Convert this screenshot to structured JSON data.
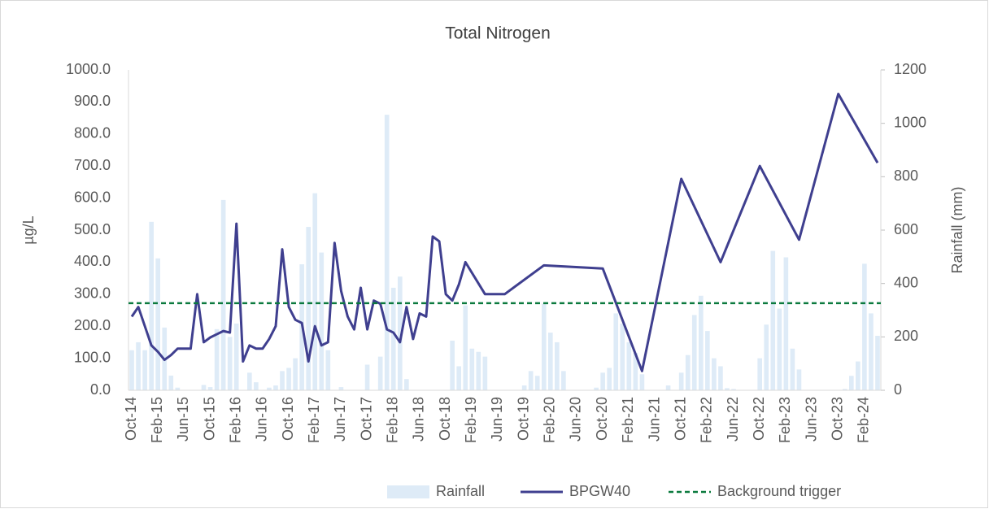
{
  "chart_data": {
    "type": "combo",
    "title": "Total Nitrogen",
    "y_label": "µg/L",
    "y2_label": "Rainfall (mm)",
    "connect_gaps": true,
    "categories": [
      "Oct-14",
      null,
      null,
      null,
      "Feb-15",
      null,
      null,
      null,
      "Jun-15",
      null,
      null,
      null,
      "Oct-15",
      null,
      null,
      null,
      "Feb-16",
      null,
      null,
      null,
      "Jun-16",
      null,
      null,
      null,
      "Oct-16",
      null,
      null,
      null,
      "Feb-17",
      null,
      null,
      null,
      "Jun-17",
      null,
      null,
      null,
      "Oct-17",
      null,
      null,
      null,
      "Feb-18",
      null,
      null,
      null,
      "Jun-18",
      null,
      null,
      null,
      "Oct-18",
      null,
      null,
      null,
      "Feb-19",
      null,
      null,
      null,
      "Jun-19",
      null,
      null,
      null,
      "Oct-19",
      null,
      null,
      null,
      "Feb-20",
      null,
      null,
      null,
      "Jun-20",
      null,
      null,
      null,
      "Oct-20",
      null,
      null,
      null,
      "Feb-21",
      null,
      null,
      null,
      "Jun-21",
      null,
      null,
      null,
      "Oct-21",
      null,
      null,
      null,
      "Feb-22",
      null,
      null,
      null,
      "Jun-22",
      null,
      null,
      null,
      "Oct-22",
      null,
      null,
      null,
      "Feb-23",
      null,
      null,
      null,
      "Jun-23",
      null,
      null,
      null,
      "Oct-23",
      null,
      null,
      null,
      "Feb-24",
      null,
      null
    ],
    "series": [
      {
        "name": "Rainfall",
        "kind": "bar",
        "axis": "y2",
        "color": "#deebf7",
        "values": [
          150,
          180,
          150,
          631,
          494,
          235,
          55,
          10,
          0,
          0,
          0,
          20,
          12,
          229,
          713,
          200,
          250,
          0,
          66,
          30,
          0,
          10,
          18,
          72,
          84,
          120,
          472,
          612,
          738,
          516,
          150,
          0,
          12,
          0,
          0,
          0,
          96,
          0,
          126,
          1032,
          384,
          426,
          42,
          0,
          0,
          0,
          0,
          0,
          0,
          186,
          90,
          318,
          156,
          144,
          126,
          0,
          0,
          0,
          0,
          0,
          18,
          72,
          54,
          324,
          216,
          180,
          72,
          0,
          0,
          0,
          0,
          10,
          66,
          84,
          288,
          250,
          180,
          140,
          60,
          0,
          0,
          0,
          18,
          0,
          66,
          132,
          282,
          354,
          222,
          120,
          90,
          8,
          5,
          0,
          0,
          0,
          120,
          246,
          522,
          306,
          498,
          156,
          78,
          0,
          0,
          0,
          0,
          0,
          0,
          5,
          54,
          108,
          474,
          288,
          204
        ]
      },
      {
        "name": "BPGW40",
        "kind": "line",
        "color": "#3f3f8f",
        "values": [
          230,
          260,
          200,
          140,
          120,
          95,
          110,
          130,
          130,
          130,
          300,
          150,
          165,
          175,
          185,
          180,
          520,
          90,
          140,
          130,
          130,
          160,
          200,
          440,
          260,
          220,
          210,
          90,
          200,
          140,
          150,
          460,
          310,
          230,
          190,
          320,
          190,
          280,
          270,
          190,
          180,
          150,
          260,
          160,
          240,
          230,
          480,
          465,
          300,
          280,
          330,
          400,
          null,
          null,
          300,
          null,
          null,
          300,
          null,
          null,
          null,
          null,
          null,
          390,
          null,
          null,
          null,
          null,
          null,
          null,
          null,
          null,
          380,
          null,
          null,
          null,
          null,
          null,
          60,
          null,
          null,
          null,
          null,
          null,
          660,
          null,
          null,
          null,
          null,
          null,
          400,
          null,
          null,
          null,
          null,
          null,
          700,
          null,
          null,
          null,
          null,
          null,
          470,
          null,
          null,
          null,
          null,
          null,
          925,
          null,
          null,
          null,
          null,
          null,
          710
        ]
      },
      {
        "name": "Background trigger",
        "kind": "hline",
        "color": "#0b7a3e",
        "value": 272
      }
    ],
    "ylim": [
      0,
      1000
    ],
    "yticks": [
      {
        "value": 0,
        "label": "0.0"
      },
      {
        "value": 100,
        "label": "100.0"
      },
      {
        "value": 200,
        "label": "200.0"
      },
      {
        "value": 300,
        "label": "300.0"
      },
      {
        "value": 400,
        "label": "400.0"
      },
      {
        "value": 500,
        "label": "500.0"
      },
      {
        "value": 600,
        "label": "600.0"
      },
      {
        "value": 700,
        "label": "700.0"
      },
      {
        "value": 800,
        "label": "800.0"
      },
      {
        "value": 900,
        "label": "900.0"
      },
      {
        "value": 1000,
        "label": "1000.0"
      }
    ],
    "y2lim": [
      0,
      1200
    ],
    "y2ticks": [
      0,
      200,
      400,
      600,
      800,
      1000,
      1200
    ],
    "grid": false,
    "legend": "bottom"
  }
}
